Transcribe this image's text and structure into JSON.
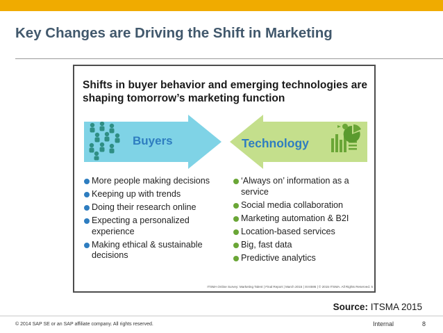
{
  "slide": {
    "title": "Key Changes are Driving the Shift in Marketing",
    "accent_color": "#f0ab00",
    "title_color": "#41586c"
  },
  "figure": {
    "heading": "Shifts in buyer behavior and emerging technologies are shaping tomorrow’s marketing function",
    "buyers": {
      "label": "Buyers",
      "icon": "people-group-icon",
      "arrow_color": "#7fd3e6",
      "items": [
        "More people making decisions",
        "Keeping up with trends",
        "Doing their research online",
        "Expecting a personalized experience",
        "Making ethical & sustainable decisions"
      ]
    },
    "technology": {
      "label": "Technology",
      "icon": "analytics-chart-icon",
      "arrow_color": "#c4df8c",
      "items": [
        "‘Always on’ information as a service",
        "Social media collaboration",
        "Marketing automation & B2I",
        "Location-based services",
        "Big, fast data",
        "Predictive analytics"
      ]
    },
    "footer": "ITSMA Online Survey: Marketing Talent | Final Report | March 2015 | SV4595 | © 2015 ITSMA. All Rights Reserved. 5"
  },
  "source": {
    "label": "Source:",
    "value": "ITSMA 2015"
  },
  "footer": {
    "copyright": "© 2014 SAP SE or an SAP affiliate company. All rights reserved.",
    "classification": "Internal",
    "page_number": "8"
  }
}
